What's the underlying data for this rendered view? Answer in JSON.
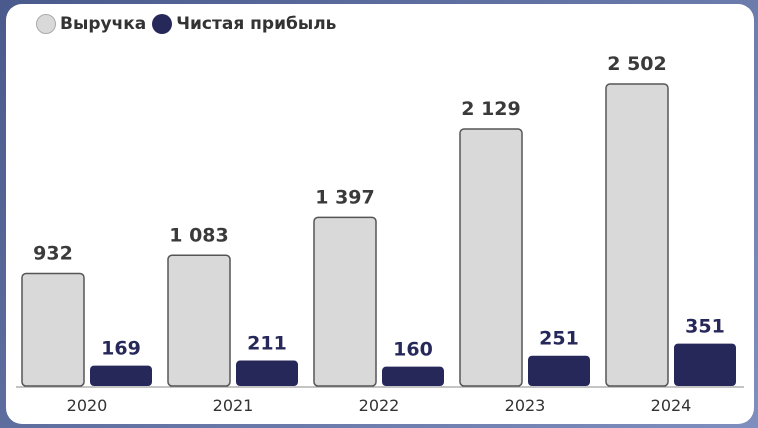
{
  "colors": {
    "revenue": "#d9d9d9",
    "revenue_stroke": "#555555",
    "profit": "#27285a",
    "axis": "#888888"
  },
  "legend": {
    "revenue": "Выручка",
    "profit": "Чистая прибыль"
  },
  "chart_data": {
    "type": "bar",
    "categories": [
      "2020",
      "2021",
      "2022",
      "2023",
      "2024"
    ],
    "series": [
      {
        "name": "Выручка",
        "values": [
          932,
          1083,
          1397,
          2129,
          2502
        ],
        "labels": [
          "932",
          "1 083",
          "1 397",
          "2 129",
          "2 502"
        ]
      },
      {
        "name": "Чистая прибыль",
        "values": [
          169,
          211,
          160,
          251,
          351
        ],
        "labels": [
          "169",
          "211",
          "160",
          "251",
          "351"
        ]
      }
    ],
    "legend_position": "top-left",
    "grid": false
  }
}
